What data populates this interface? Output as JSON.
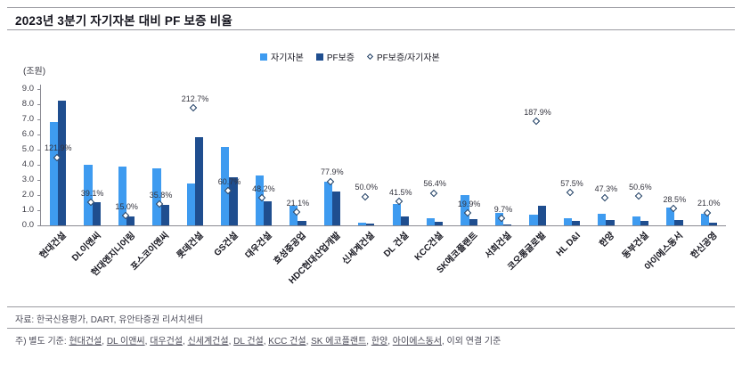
{
  "chart_data": {
    "type": "bar",
    "title": "2023년 3분기 자기자본 대비 PF 보증 비율",
    "unit_label": "(조원)",
    "legend_position": "top",
    "grid": false,
    "categories": [
      "현대건설",
      "DL이앤씨",
      "현대엔지니어링",
      "포스코이앤씨",
      "롯데건설",
      "GS건설",
      "대우건설",
      "효성중공업",
      "HDC현대산업개발",
      "신세계건설",
      "DL 건설",
      "KCC건설",
      "SK에코플랜트",
      "서희건설",
      "코오롱글로벌",
      "HL D&I",
      "한양",
      "동부건설",
      "아이에스동서",
      "한신공영"
    ],
    "series": [
      {
        "name": "자기자본",
        "type": "bar",
        "color": "#3e9bf0",
        "values": [
          6.8,
          4.0,
          3.9,
          3.75,
          2.75,
          5.2,
          3.3,
          1.3,
          2.9,
          0.2,
          1.4,
          0.45,
          2.0,
          0.85,
          0.7,
          0.5,
          0.75,
          0.6,
          1.2,
          0.75
        ]
      },
      {
        "name": "PF보증",
        "type": "bar",
        "color": "#1f4e8f",
        "values": [
          8.25,
          1.55,
          0.59,
          1.34,
          5.85,
          3.15,
          1.6,
          0.27,
          2.26,
          0.1,
          0.58,
          0.25,
          0.4,
          0.08,
          1.3,
          0.29,
          0.35,
          0.3,
          0.34,
          0.16
        ]
      },
      {
        "name": "PF보증/자기자본",
        "type": "scatter",
        "marker": "diamond",
        "unit": "%",
        "axis": "secondary",
        "values": [
          121.9,
          39.1,
          15.0,
          35.8,
          212.7,
          60.7,
          48.2,
          21.1,
          77.9,
          50.0,
          41.5,
          56.4,
          19.9,
          9.7,
          187.9,
          57.5,
          47.3,
          50.6,
          28.5,
          21.0
        ]
      }
    ],
    "y_axis": {
      "min": 0,
      "max": 9,
      "step": 1,
      "decimals": 1
    },
    "secondary_y_axis": {
      "min": 0,
      "max": 250,
      "visible": false
    },
    "colors": {
      "equity_bar": "#3e9bf0",
      "pf_bar": "#1f4e8f",
      "marker_outline": "#17375e"
    }
  },
  "footer": {
    "source": "자료: 한국신용평가, DART, 유안타증권 리서치센터",
    "note_prefix": "주) 별도 기준: ",
    "note_companies": [
      "현대건설",
      "DL 이앤씨",
      "대우건설",
      "신세계건설",
      "DL 건설",
      "KCC 건설",
      "SK 에코플랜트",
      "한양",
      "아이에스동서"
    ],
    "note_suffix": ", 이외 연결 기준"
  }
}
